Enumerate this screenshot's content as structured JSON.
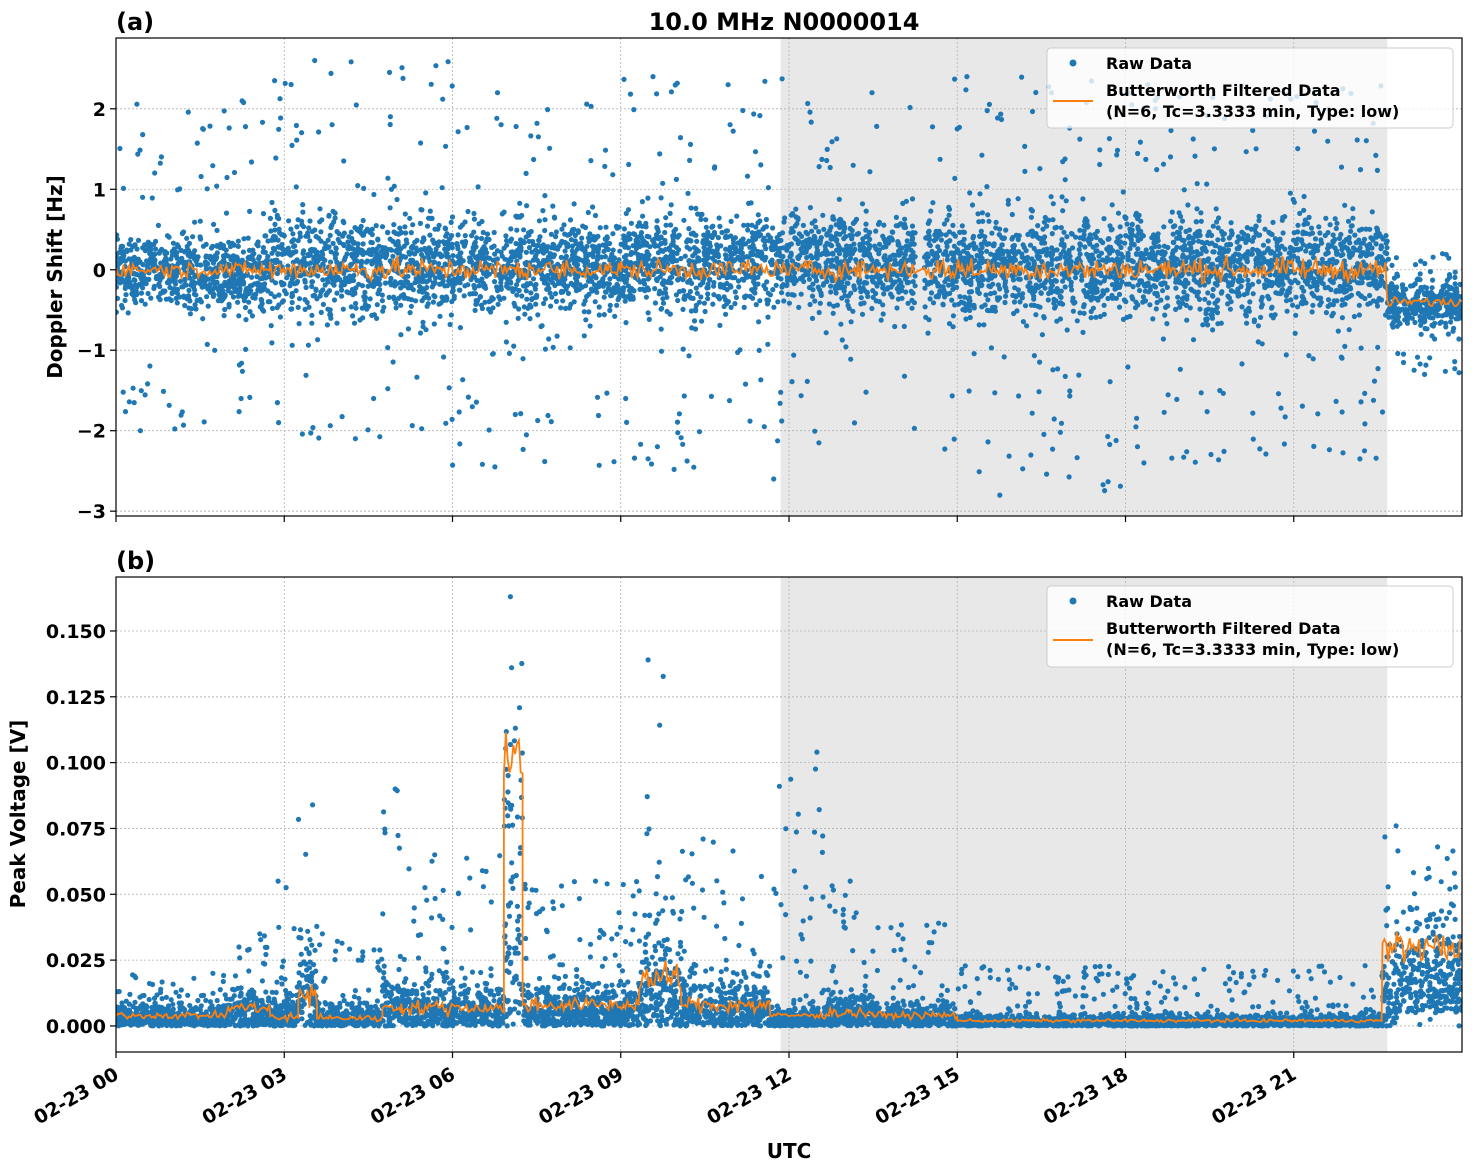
{
  "figure_title": "10.0 MHz N0000014",
  "chart_data": [
    {
      "type": "scatter",
      "panel_label": "(a)",
      "title": "10.0 MHz N0000014",
      "xlabel": "",
      "ylabel": "Doppler Shift [Hz]",
      "xlim": [
        "00:00",
        "24:00"
      ],
      "ylim": [
        -3.06,
        2.88
      ],
      "x_ticks": [
        "00:00",
        "03:00",
        "06:00",
        "09:00",
        "12:00",
        "15:00",
        "18:00",
        "21:00"
      ],
      "y_ticks": [
        -3,
        -2,
        -1,
        0,
        1,
        2
      ],
      "y_tick_labels": [
        "−3",
        "−2",
        "−1",
        "0",
        "1",
        "2"
      ],
      "grid": true,
      "shaded_interval": [
        "11:51",
        "22:40"
      ],
      "legend_position": "top-right",
      "legend": [
        "Raw Data",
        "Butterworth Filtered Data",
        "(N=6, Tc=3.3333 min, Type: low)"
      ],
      "series": [
        {
          "name": "Raw Data",
          "style": "points",
          "color": "#1f77b4"
        },
        {
          "name": "Butterworth Filtered Data (N=6, Tc=3.3333 min, Type: low)",
          "style": "line",
          "color": "#ff7f0e"
        }
      ],
      "raw_data_envelope": [
        {
          "start": "00:00",
          "end": "02:45",
          "core": [
            -0.7,
            0.6
          ],
          "extremes": [
            -2.0,
            2.1
          ],
          "filtered_mean": 0.0
        },
        {
          "start": "02:45",
          "end": "06:00",
          "core": [
            -0.9,
            1.0
          ],
          "extremes": [
            -2.1,
            2.6
          ],
          "filtered_mean": 0.0
        },
        {
          "start": "06:00",
          "end": "09:00",
          "core": [
            -0.8,
            0.9
          ],
          "extremes": [
            -2.45,
            2.2
          ],
          "filtered_mean": 0.0
        },
        {
          "start": "09:00",
          "end": "12:00",
          "core": [
            -0.8,
            1.0
          ],
          "extremes": [
            -2.6,
            2.4
          ],
          "filtered_mean": 0.0
        },
        {
          "start": "12:00",
          "end": "14:15",
          "core": [
            -0.8,
            1.0
          ],
          "extremes": [
            -2.15,
            2.2
          ],
          "filtered_mean": 0.0
        },
        {
          "start": "14:25",
          "end": "18:00",
          "core": [
            -0.9,
            1.0
          ],
          "extremes": [
            -2.8,
            2.4
          ],
          "filtered_mean": 0.0
        },
        {
          "start": "18:00",
          "end": "22:40",
          "core": [
            -0.9,
            1.0
          ],
          "extremes": [
            -2.4,
            2.3
          ],
          "filtered_mean": 0.0
        },
        {
          "start": "22:40",
          "end": "24:00",
          "core": [
            -0.85,
            0.0
          ],
          "extremes": [
            -1.3,
            0.2
          ],
          "filtered_mean": -0.4
        }
      ]
    },
    {
      "type": "scatter",
      "panel_label": "(b)",
      "xlabel": "UTC",
      "ylabel": "Peak Voltage [V]",
      "xlim": [
        "00:00",
        "24:00"
      ],
      "ylim": [
        -0.0099,
        0.1705
      ],
      "x_ticks": [
        "00:00",
        "03:00",
        "06:00",
        "09:00",
        "12:00",
        "15:00",
        "18:00",
        "21:00"
      ],
      "x_tick_labels": [
        "02-23 00",
        "02-23 03",
        "02-23 06",
        "02-23 09",
        "02-23 12",
        "02-23 15",
        "02-23 18",
        "02-23 21"
      ],
      "y_ticks": [
        0,
        0.025,
        0.05,
        0.075,
        0.1,
        0.125,
        0.15
      ],
      "y_tick_labels": [
        "0.000",
        "0.025",
        "0.050",
        "0.075",
        "0.100",
        "0.125",
        "0.150"
      ],
      "grid": true,
      "shaded_interval": [
        "11:51",
        "22:40"
      ],
      "legend_position": "top-right",
      "legend": [
        "Raw Data",
        "Butterworth Filtered Data",
        "(N=6, Tc=3.3333 min, Type: low)"
      ],
      "series": [
        {
          "name": "Raw Data",
          "style": "points",
          "color": "#1f77b4"
        },
        {
          "name": "Butterworth Filtered Data (N=6, Tc=3.3333 min, Type: low)",
          "style": "line",
          "color": "#ff7f0e"
        }
      ],
      "raw_data_envelope": [
        {
          "start": "00:00",
          "end": "02:00",
          "core": [
            0.0,
            0.012
          ],
          "extremes": [
            0.0,
            0.02
          ],
          "filtered_mean": 0.004
        },
        {
          "start": "02:00",
          "end": "02:45",
          "core": [
            0.0,
            0.02
          ],
          "extremes": [
            0.0,
            0.035
          ],
          "filtered_mean": 0.007
        },
        {
          "start": "02:45",
          "end": "03:15",
          "core": [
            0.0,
            0.02
          ],
          "extremes": [
            0.0,
            0.055
          ],
          "filtered_mean": 0.003
        },
        {
          "start": "03:15",
          "end": "03:35",
          "core": [
            0.0,
            0.05
          ],
          "extremes": [
            0.0,
            0.084
          ],
          "filtered_mean": 0.012
        },
        {
          "start": "03:35",
          "end": "04:45",
          "core": [
            0.0,
            0.012
          ],
          "extremes": [
            0.0,
            0.035
          ],
          "filtered_mean": 0.003
        },
        {
          "start": "04:45",
          "end": "05:05",
          "core": [
            0.0,
            0.03
          ],
          "extremes": [
            0.0,
            0.09
          ],
          "filtered_mean": 0.007
        },
        {
          "start": "05:05",
          "end": "06:55",
          "core": [
            0.0,
            0.025
          ],
          "extremes": [
            0.0,
            0.065
          ],
          "filtered_mean": 0.007
        },
        {
          "start": "06:55",
          "end": "07:15",
          "core": [
            0.0,
            0.15
          ],
          "extremes": [
            0.0,
            0.163
          ],
          "filtered_mean": 0.1
        },
        {
          "start": "07:15",
          "end": "09:20",
          "core": [
            0.0,
            0.025
          ],
          "extremes": [
            0.0,
            0.055
          ],
          "filtered_mean": 0.008
        },
        {
          "start": "09:20",
          "end": "10:05",
          "core": [
            0.0,
            0.055
          ],
          "extremes": [
            0.0,
            0.139
          ],
          "filtered_mean": 0.018
        },
        {
          "start": "10:05",
          "end": "11:40",
          "core": [
            0.0,
            0.03
          ],
          "extremes": [
            0.0,
            0.071
          ],
          "filtered_mean": 0.008
        },
        {
          "start": "11:40",
          "end": "12:40",
          "core": [
            0.0,
            0.01
          ],
          "extremes": [
            0.0,
            0.104
          ],
          "filtered_mean": 0.004
        },
        {
          "start": "12:40",
          "end": "13:30",
          "core": [
            0.0,
            0.02
          ],
          "extremes": [
            0.0,
            0.055
          ],
          "filtered_mean": 0.005
        },
        {
          "start": "13:30",
          "end": "15:00",
          "core": [
            0.0,
            0.012
          ],
          "extremes": [
            0.0,
            0.039
          ],
          "filtered_mean": 0.004
        },
        {
          "start": "15:00",
          "end": "22:35",
          "core": [
            0.0,
            0.006
          ],
          "extremes": [
            0.0,
            0.023
          ],
          "filtered_mean": 0.002
        },
        {
          "start": "22:35",
          "end": "22:50",
          "core": [
            0.0,
            0.045
          ],
          "extremes": [
            0.0,
            0.076
          ],
          "filtered_mean": 0.03
        },
        {
          "start": "22:50",
          "end": "24:00",
          "core": [
            0.005,
            0.06
          ],
          "extremes": [
            0.0,
            0.068
          ],
          "filtered_mean": 0.03
        }
      ]
    }
  ]
}
